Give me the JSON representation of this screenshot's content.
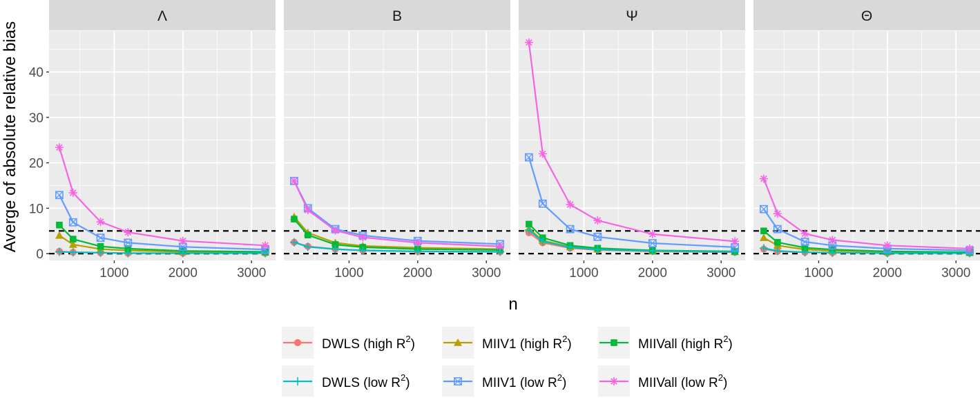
{
  "chart_data": {
    "type": "line",
    "ylabel": "Averge of absolute relative bias",
    "xlabel": "n",
    "x": [
      200,
      400,
      800,
      1200,
      2000,
      3200
    ],
    "xlim": [
      50,
      3350
    ],
    "ylim": [
      -1.5,
      49
    ],
    "xticks": [
      1000,
      2000,
      3000
    ],
    "yticks": [
      0,
      10,
      20,
      30,
      40
    ],
    "reference_lines": [
      0,
      5
    ],
    "facet_colors": {
      "panel_bg": "#EBEBEB",
      "strip_bg": "#D9D9D9",
      "grid": "#FFFFFF"
    },
    "legend_position": "bottom",
    "series_styles": [
      {
        "key": "dwls_high",
        "color": "#F8766D",
        "marker": "circle"
      },
      {
        "key": "miiv1_high",
        "color": "#B79F00",
        "marker": "triangle"
      },
      {
        "key": "miivall_high",
        "color": "#00BA38",
        "marker": "square"
      },
      {
        "key": "dwls_low",
        "color": "#00BFC4",
        "marker": "plus"
      },
      {
        "key": "miiv1_low",
        "color": "#619CFF",
        "marker": "boxed-x"
      },
      {
        "key": "miivall_low",
        "color": "#F564E3",
        "marker": "asterisk"
      }
    ],
    "legend": [
      {
        "key": "dwls_high",
        "label": "DWLS (high R",
        "sup": "2",
        "suffix": ")"
      },
      {
        "key": "miiv1_high",
        "label": "MIIV1 (high R",
        "sup": "2",
        "suffix": ")"
      },
      {
        "key": "miivall_high",
        "label": "MIIVall (high R",
        "sup": "2",
        "suffix": ")"
      },
      {
        "key": "dwls_low",
        "label": "DWLS (low R",
        "sup": "2",
        "suffix": ")"
      },
      {
        "key": "miiv1_low",
        "label": "MIIV1 (low R",
        "sup": "2",
        "suffix": ")"
      },
      {
        "key": "miivall_low",
        "label": "MIIVall (low R",
        "sup": "2",
        "suffix": ")"
      }
    ],
    "panels": [
      {
        "title": "Λ",
        "series": {
          "dwls_high": [
            0.5,
            0.3,
            0.2,
            0.1,
            0.1,
            0.1
          ],
          "miiv1_high": [
            4.0,
            2.0,
            1.0,
            0.7,
            0.4,
            0.3
          ],
          "miivall_high": [
            6.3,
            3.2,
            1.6,
            1.1,
            0.6,
            0.4
          ],
          "dwls_low": [
            0.4,
            0.3,
            0.2,
            0.1,
            0.1,
            0.1
          ],
          "miiv1_low": [
            12.9,
            6.9,
            3.5,
            2.4,
            1.5,
            0.9
          ],
          "miivall_low": [
            23.4,
            13.4,
            7.0,
            4.7,
            2.8,
            1.8
          ]
        }
      },
      {
        "title": "B",
        "series": {
          "dwls_high": [
            2.5,
            1.6,
            1.0,
            0.7,
            0.5,
            0.4
          ],
          "miiv1_high": [
            8.1,
            4.6,
            2.4,
            1.7,
            1.3,
            1.0
          ],
          "miivall_high": [
            7.6,
            4.1,
            2.0,
            1.4,
            1.0,
            0.8
          ],
          "dwls_low": [
            2.5,
            1.5,
            1.0,
            0.7,
            0.5,
            0.4
          ],
          "miiv1_low": [
            16.0,
            10.0,
            5.4,
            4.0,
            2.8,
            2.1
          ],
          "miivall_low": [
            16.0,
            9.6,
            5.1,
            3.6,
            2.4,
            1.6
          ]
        }
      },
      {
        "title": "Ψ",
        "series": {
          "dwls_high": [
            4.6,
            2.4,
            1.2,
            0.8,
            0.5,
            0.3
          ],
          "miiv1_high": [
            5.5,
            2.9,
            1.5,
            1.0,
            0.6,
            0.4
          ],
          "miivall_high": [
            6.5,
            3.5,
            1.8,
            1.2,
            0.7,
            0.5
          ],
          "dwls_low": [
            5.2,
            2.7,
            1.4,
            0.9,
            0.6,
            0.4
          ],
          "miiv1_low": [
            21.2,
            11.0,
            5.4,
            3.7,
            2.3,
            1.4
          ],
          "miivall_low": [
            46.5,
            22.0,
            10.8,
            7.3,
            4.3,
            2.7
          ]
        }
      },
      {
        "title": "Θ",
        "series": {
          "dwls_high": [
            1.0,
            0.5,
            0.3,
            0.2,
            0.1,
            0.1
          ],
          "miiv1_high": [
            3.5,
            1.8,
            0.9,
            0.6,
            0.4,
            0.2
          ],
          "miivall_high": [
            5.0,
            2.5,
            1.3,
            0.9,
            0.5,
            0.3
          ],
          "dwls_low": [
            1.2,
            0.6,
            0.3,
            0.2,
            0.1,
            0.1
          ],
          "miiv1_low": [
            9.8,
            5.4,
            2.6,
            1.8,
            1.1,
            0.7
          ],
          "miivall_low": [
            16.5,
            8.8,
            4.4,
            3.0,
            1.8,
            1.1
          ]
        }
      }
    ]
  }
}
